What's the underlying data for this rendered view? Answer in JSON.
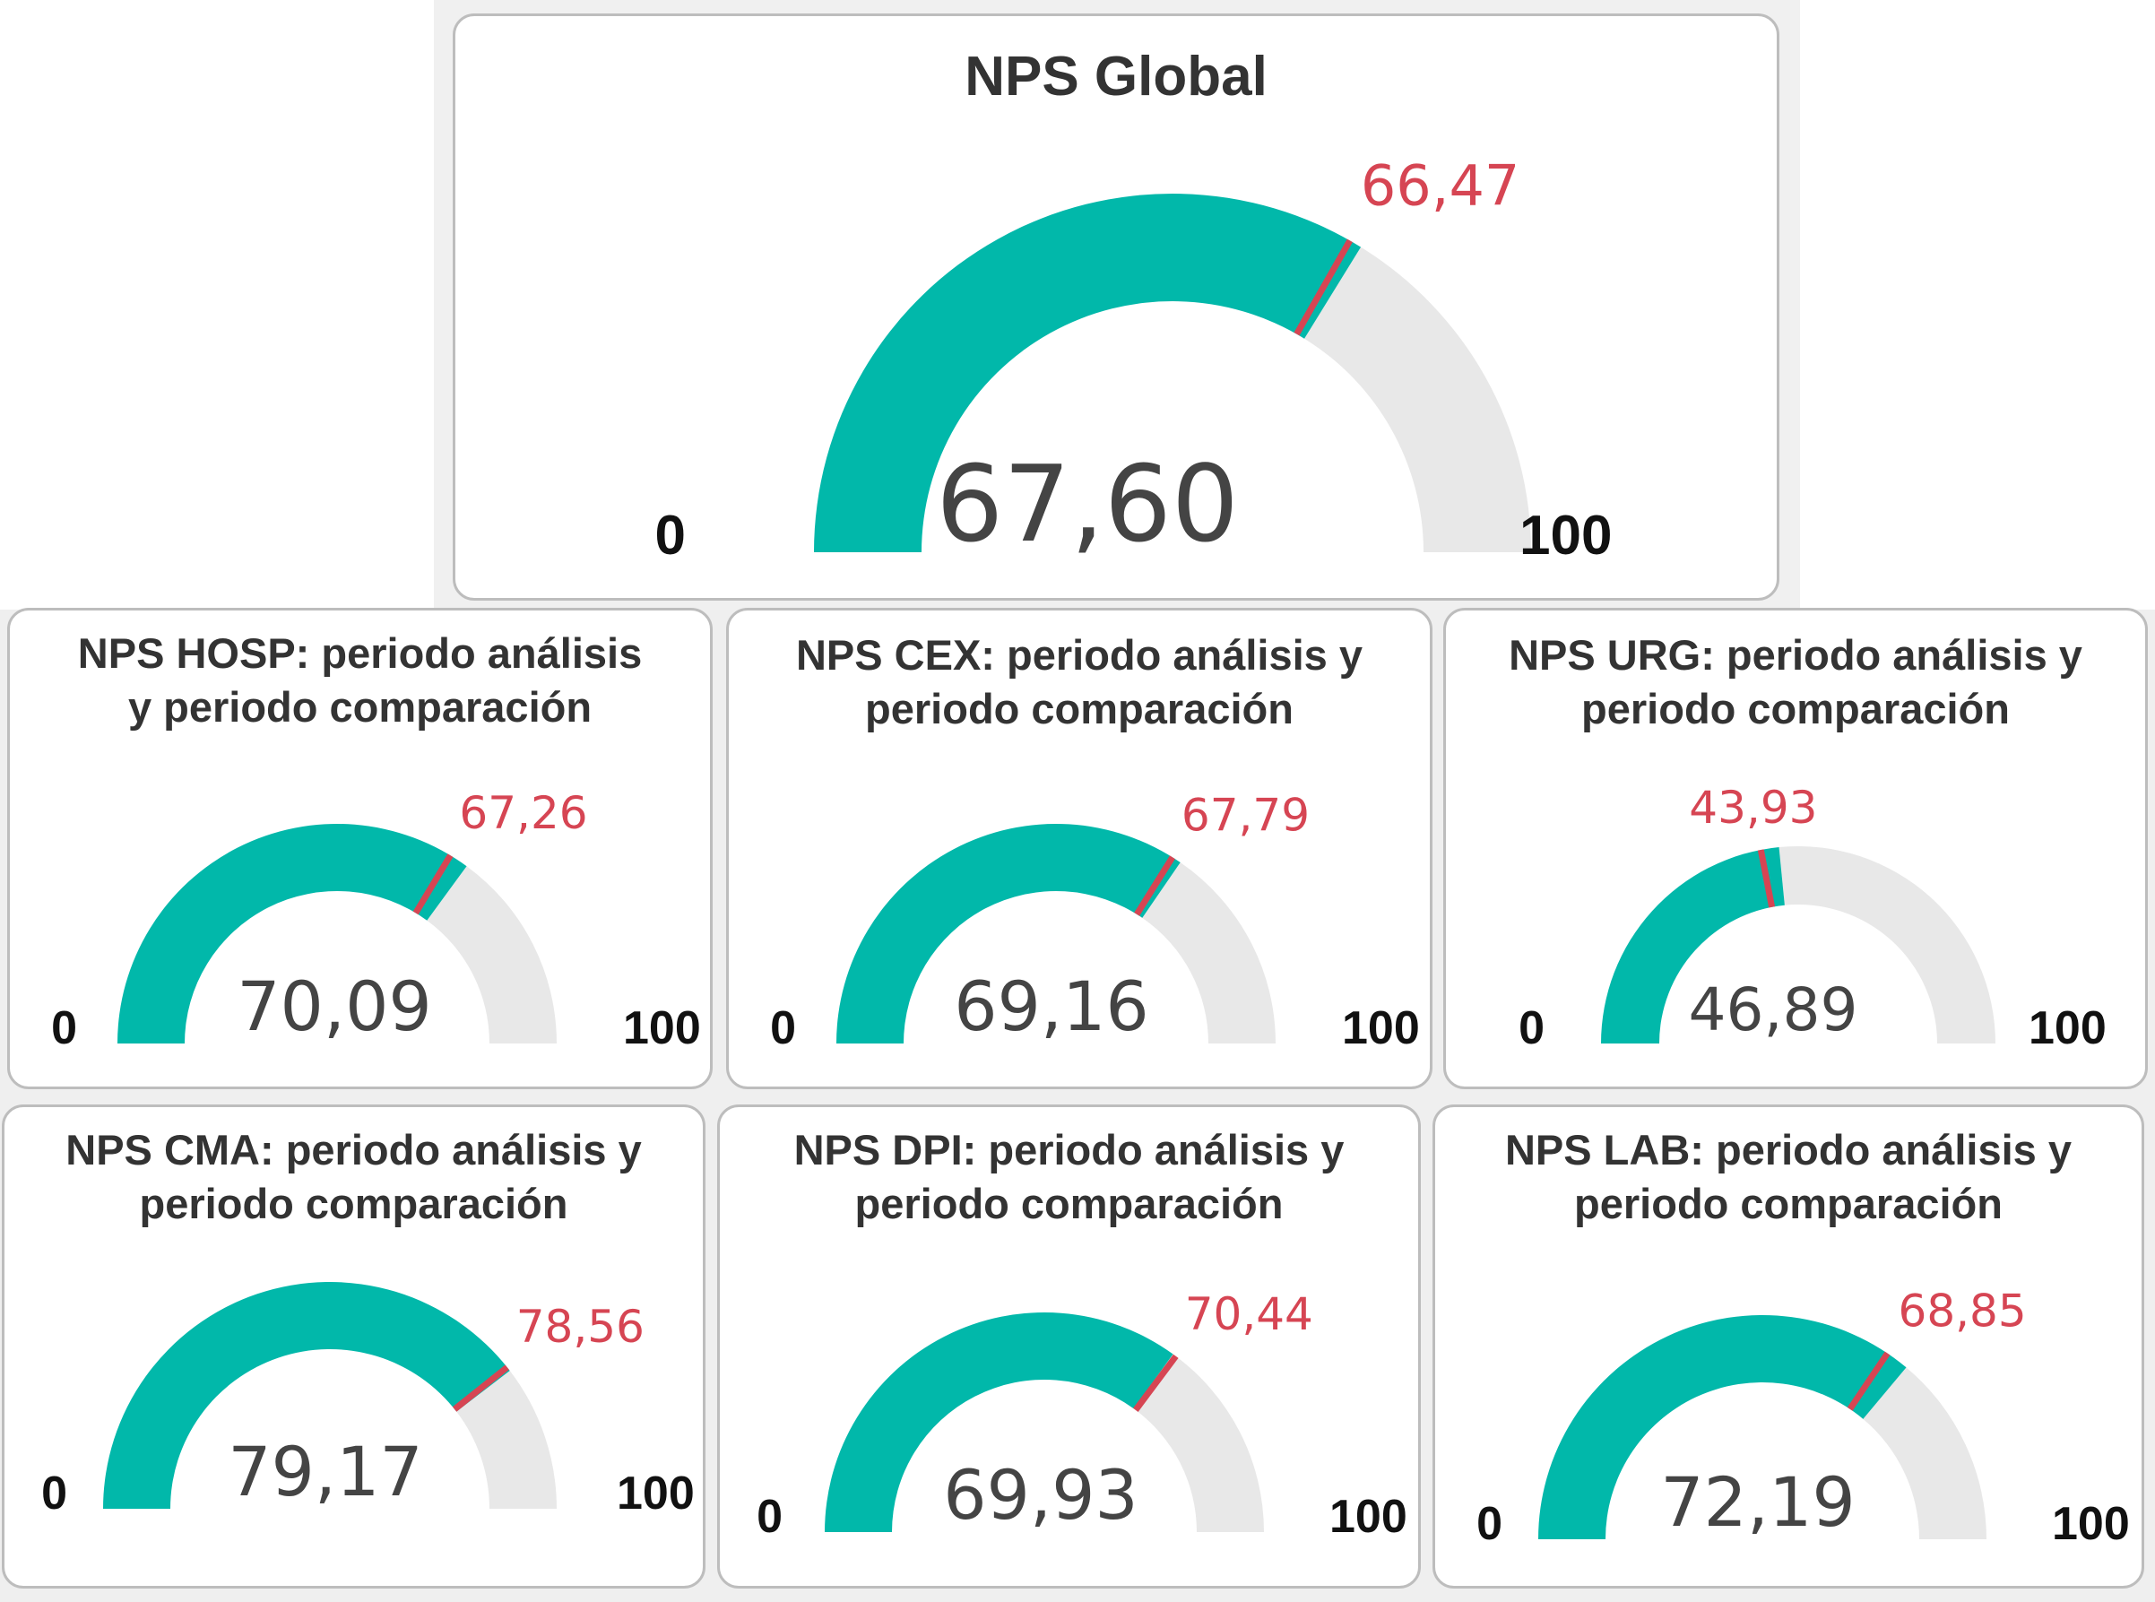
{
  "chart_data": [
    {
      "type": "gauge",
      "title": "NPS Global",
      "value": "67,60",
      "value_num": 67.6,
      "target": "66,47",
      "target_num": 66.47,
      "min": "0",
      "max": "100",
      "color": "#01b8aa",
      "target_color": "#d64553"
    },
    {
      "type": "gauge",
      "title": "NPS HOSP: periodo análisis\ny periodo comparación",
      "value": "70,09",
      "value_num": 70.09,
      "target": "67,26",
      "target_num": 67.26,
      "min": "0",
      "max": "100",
      "color": "#01b8aa",
      "target_color": "#d64553"
    },
    {
      "type": "gauge",
      "title": "NPS CEX: periodo análisis y\nperiodo comparación",
      "value": "69,16",
      "value_num": 69.16,
      "target": "67,79",
      "target_num": 67.79,
      "min": "0",
      "max": "100",
      "color": "#01b8aa",
      "target_color": "#d64553"
    },
    {
      "type": "gauge",
      "title": "NPS URG: periodo análisis y\nperiodo comparación",
      "value": "46,89",
      "value_num": 46.89,
      "target": "43,93",
      "target_num": 43.93,
      "min": "0",
      "max": "100",
      "color": "#01b8aa",
      "target_color": "#d64553"
    },
    {
      "type": "gauge",
      "title": "NPS CMA: periodo análisis y\nperiodo comparación",
      "value": "79,17",
      "value_num": 79.17,
      "target": "78,56",
      "target_num": 78.56,
      "min": "0",
      "max": "100",
      "color": "#01b8aa",
      "target_color": "#d64553"
    },
    {
      "type": "gauge",
      "title": "NPS DPI: periodo análisis y\nperiodo comparación",
      "value": "69,93",
      "value_num": 69.93,
      "target": "70,44",
      "target_num": 70.44,
      "min": "0",
      "max": "100",
      "color": "#01b8aa",
      "target_color": "#d64553"
    },
    {
      "type": "gauge",
      "title": "NPS LAB: periodo análisis y\nperiodo comparación",
      "value": "72,19",
      "value_num": 72.19,
      "target": "68,85",
      "target_num": 68.85,
      "min": "0",
      "max": "100",
      "color": "#01b8aa",
      "target_color": "#d64553"
    }
  ]
}
